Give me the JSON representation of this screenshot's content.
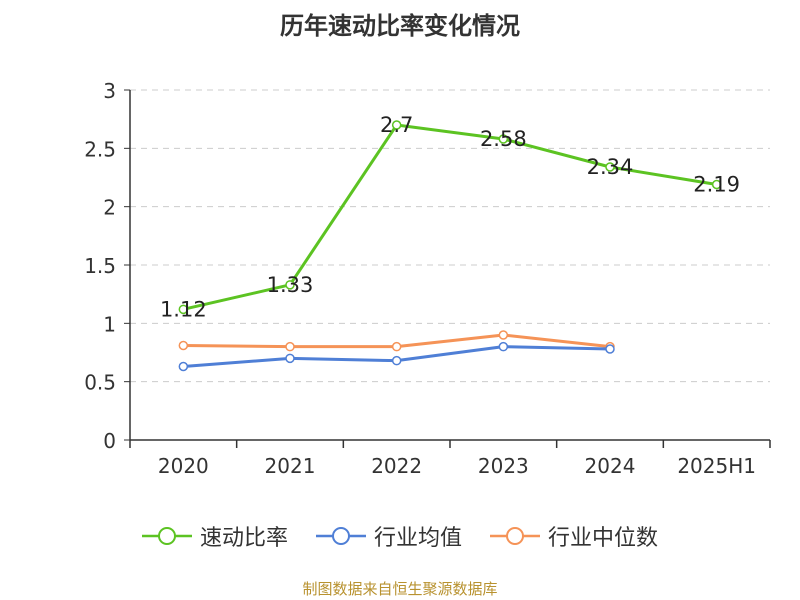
{
  "chart_data": {
    "type": "line",
    "title": "历年速动比率变化情况",
    "categories": [
      "2020",
      "2021",
      "2022",
      "2023",
      "2024",
      "2025H1"
    ],
    "ylim": [
      0,
      3
    ],
    "yticks": [
      "0",
      "0.5",
      "1",
      "1.5",
      "2",
      "2.5",
      "3"
    ],
    "grid": true,
    "legend_position": "bottom",
    "series": [
      {
        "name": "速动比率",
        "color": "#5cc322",
        "values": [
          1.12,
          1.33,
          2.7,
          2.58,
          2.34,
          2.19
        ],
        "data_labels": [
          "1.12",
          "1.33",
          "2.7",
          "2.58",
          "2.34",
          "2.19"
        ]
      },
      {
        "name": "行业均值",
        "color": "#4f7fd6",
        "values": [
          0.63,
          0.7,
          0.68,
          0.8,
          0.78,
          null
        ]
      },
      {
        "name": "行业中位数",
        "color": "#f59357",
        "values": [
          0.81,
          0.8,
          0.8,
          0.9,
          0.8,
          null
        ]
      }
    ]
  },
  "footer": {
    "source": "制图数据来自恒生聚源数据库"
  }
}
